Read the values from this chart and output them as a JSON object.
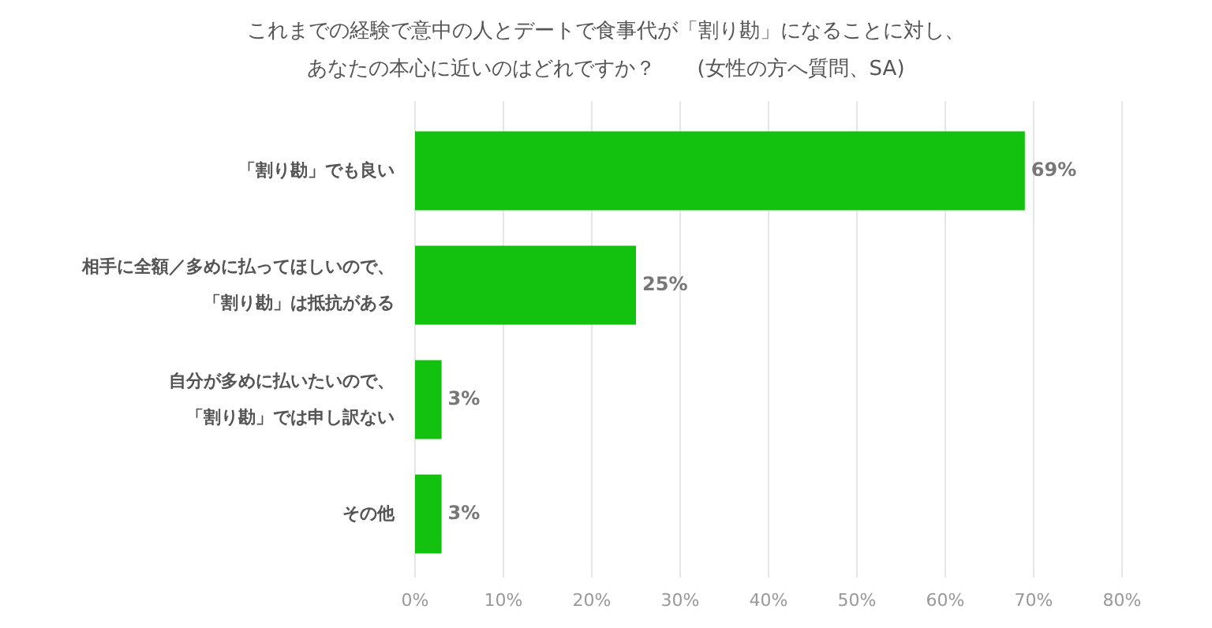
{
  "chart_data": {
    "type": "bar",
    "orientation": "horizontal",
    "title": "これまでの経験で意中の人とデートで食事代が「割り勘」になることに対し、",
    "subtitle": "あなたの本心に近いのはどれですか？　　(女性の方へ質問、SA)",
    "categories": [
      "「割り勘」でも良い",
      "相手に全額／多めに払ってほしいので、「割り勘」は抵抗がある",
      "自分が多めに払いたいので、「割り勘」では申し訳ない",
      "その他"
    ],
    "values": [
      69,
      25,
      3,
      3
    ],
    "value_labels": [
      "69%",
      "25%",
      "3%",
      "3%"
    ],
    "color": "#13c10f",
    "xlim": [
      0,
      80
    ],
    "xticks": [
      {
        "value": 0,
        "label": "0%"
      },
      {
        "value": 10,
        "label": "10%"
      },
      {
        "value": 20,
        "label": "20%"
      },
      {
        "value": 30,
        "label": "30%"
      },
      {
        "value": 40,
        "label": "40%"
      },
      {
        "value": 50,
        "label": "50%"
      },
      {
        "value": 60,
        "label": "60%"
      },
      {
        "value": 70,
        "label": "70%"
      },
      {
        "value": 80,
        "label": "80%"
      }
    ],
    "grid": "x"
  }
}
